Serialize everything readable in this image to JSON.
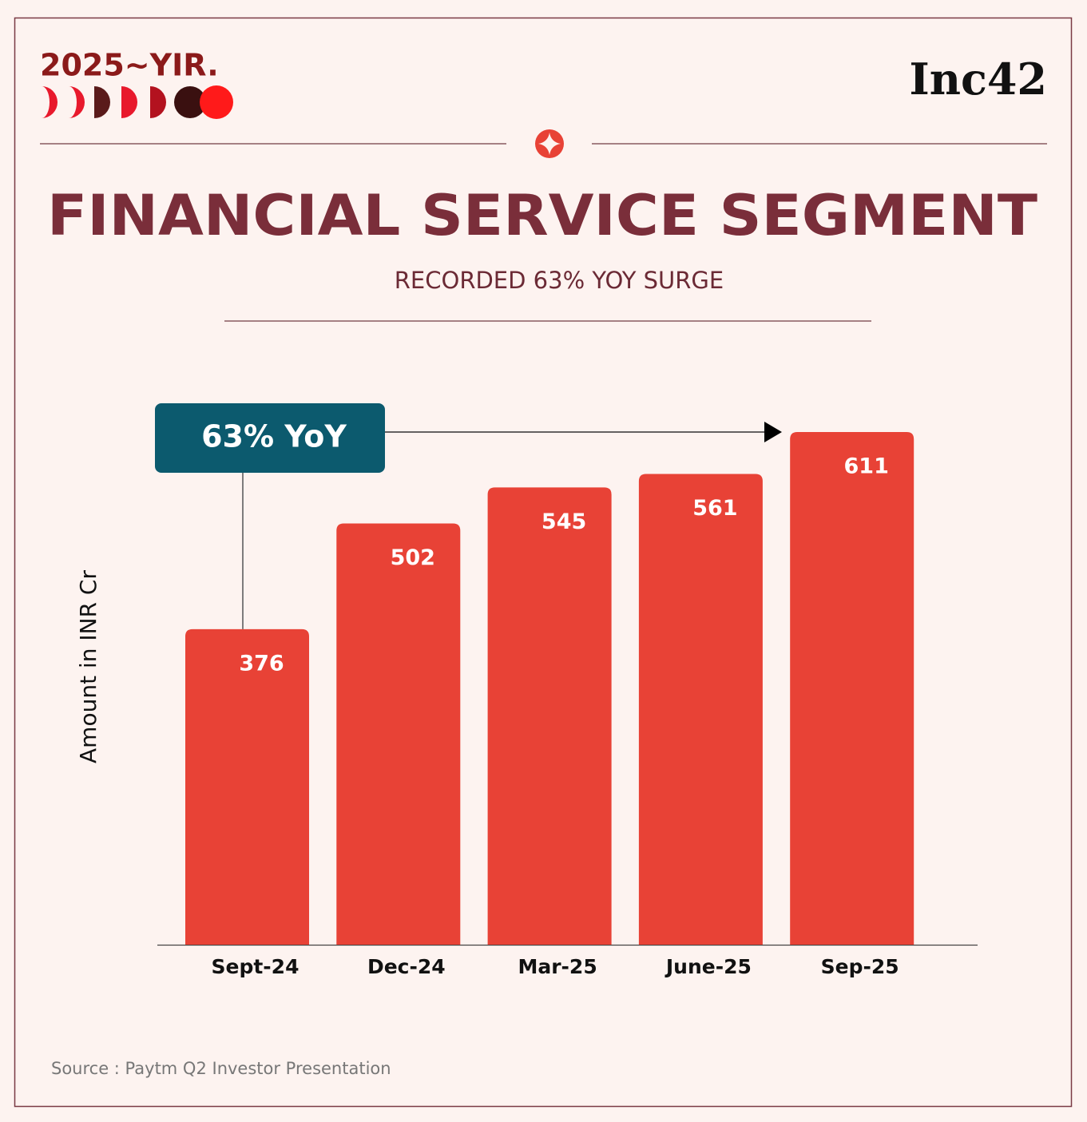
{
  "header": {
    "left_logo": "2025~YIR.",
    "right_logo": "Inc42"
  },
  "chart_data": {
    "type": "bar",
    "title": "FINANCIAL SERVICE SEGMENT",
    "subtitle": "RECORDED 63% YOY SURGE",
    "annotation": "63% YoY",
    "y_label": "Amount in INR Cr",
    "categories": [
      "Sept-24",
      "Dec-24",
      "Mar-25",
      "June-25",
      "Sep-25"
    ],
    "values": [
      376,
      502,
      545,
      561,
      611
    ],
    "color": "#e84236",
    "ylim": [
      0,
      650
    ],
    "source": "Source : Paytm Q2 Investor Presentation"
  }
}
